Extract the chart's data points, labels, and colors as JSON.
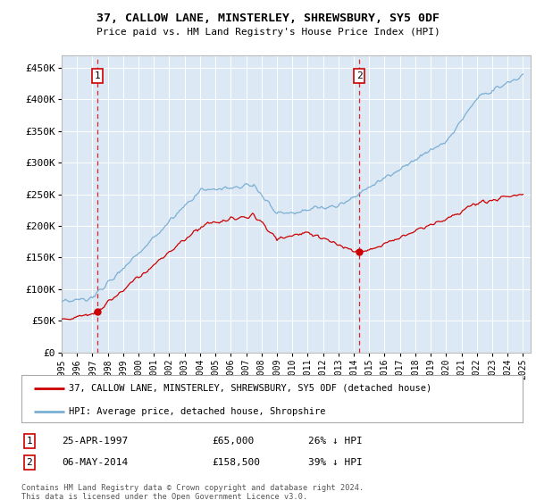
{
  "title": "37, CALLOW LANE, MINSTERLEY, SHREWSBURY, SY5 0DF",
  "subtitle": "Price paid vs. HM Land Registry's House Price Index (HPI)",
  "plot_bg_color": "#dce9f5",
  "hpi_color": "#7bafd4",
  "price_color": "#cc0000",
  "xlim": [
    1995.0,
    2025.5
  ],
  "ylim": [
    0,
    470000
  ],
  "yticks": [
    0,
    50000,
    100000,
    150000,
    200000,
    250000,
    300000,
    350000,
    400000,
    450000
  ],
  "ytick_labels": [
    "£0",
    "£50K",
    "£100K",
    "£150K",
    "£200K",
    "£250K",
    "£300K",
    "£350K",
    "£400K",
    "£450K"
  ],
  "xticks": [
    1995,
    1996,
    1997,
    1998,
    1999,
    2000,
    2001,
    2002,
    2003,
    2004,
    2005,
    2006,
    2007,
    2008,
    2009,
    2010,
    2011,
    2012,
    2013,
    2014,
    2015,
    2016,
    2017,
    2018,
    2019,
    2020,
    2021,
    2022,
    2023,
    2024,
    2025
  ],
  "purchase1_x": 1997.32,
  "purchase1_y": 65000,
  "purchase2_x": 2014.35,
  "purchase2_y": 158500,
  "legend_label_price": "37, CALLOW LANE, MINSTERLEY, SHREWSBURY, SY5 0DF (detached house)",
  "legend_label_hpi": "HPI: Average price, detached house, Shropshire",
  "annotation1_date": "25-APR-1997",
  "annotation1_price": "£65,000",
  "annotation1_hpi": "26% ↓ HPI",
  "annotation2_date": "06-MAY-2014",
  "annotation2_price": "£158,500",
  "annotation2_hpi": "39% ↓ HPI",
  "footer": "Contains HM Land Registry data © Crown copyright and database right 2024.\nThis data is licensed under the Open Government Licence v3.0."
}
